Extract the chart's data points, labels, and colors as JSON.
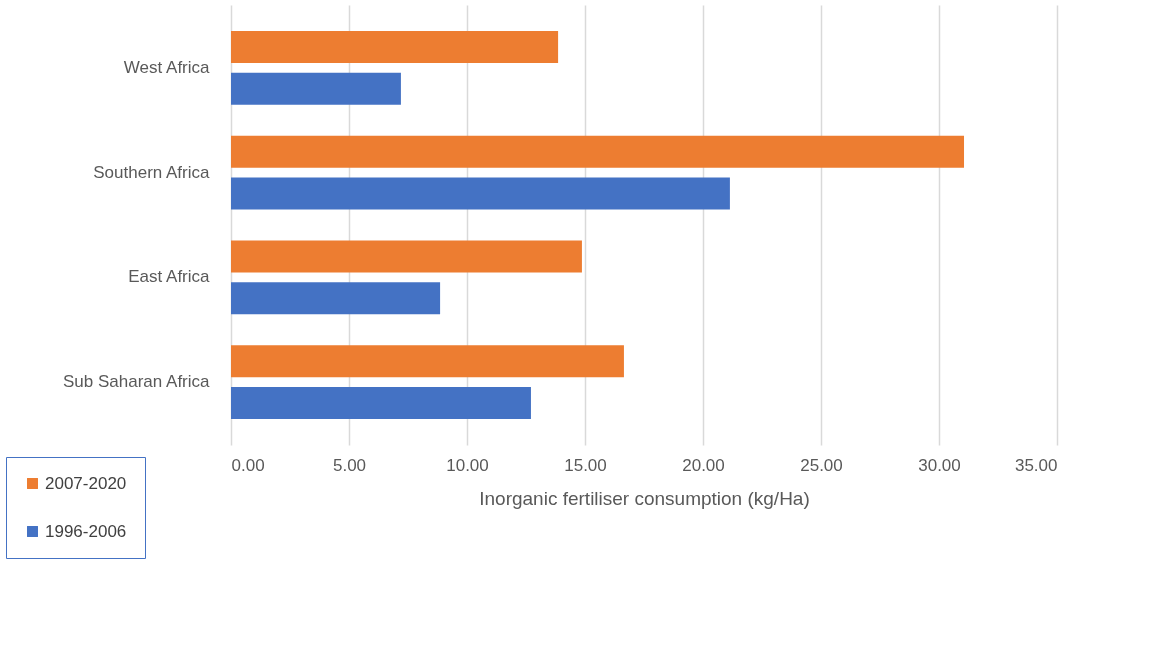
{
  "chart_data": {
    "type": "bar",
    "orientation": "horizontal",
    "xlabel": "Inorganic fertiliser consumption (kg/Ha)",
    "categories": [
      "West Africa",
      "Southern Africa",
      "East Africa",
      "Sub Saharan Africa"
    ],
    "series": [
      {
        "name": "2007-2020",
        "color": "#ed7d31",
        "values": [
          13.86,
          31.06,
          14.87,
          16.65
        ]
      },
      {
        "name": "1996-2006",
        "color": "#4472c4",
        "values": [
          7.2,
          21.14,
          8.86,
          12.71
        ]
      }
    ],
    "xlim": [
      0,
      35
    ],
    "xticks": [
      {
        "value": 0,
        "label": "0.00"
      },
      {
        "value": 5,
        "label": "5.00"
      },
      {
        "value": 10,
        "label": "10.00"
      },
      {
        "value": 15,
        "label": "15.00"
      },
      {
        "value": 20,
        "label": "20.00"
      },
      {
        "value": 25,
        "label": "25.00"
      },
      {
        "value": 30,
        "label": "30.00"
      },
      {
        "value": 35,
        "label": "35.00"
      }
    ],
    "grid": "x",
    "legend": "bottom left"
  }
}
